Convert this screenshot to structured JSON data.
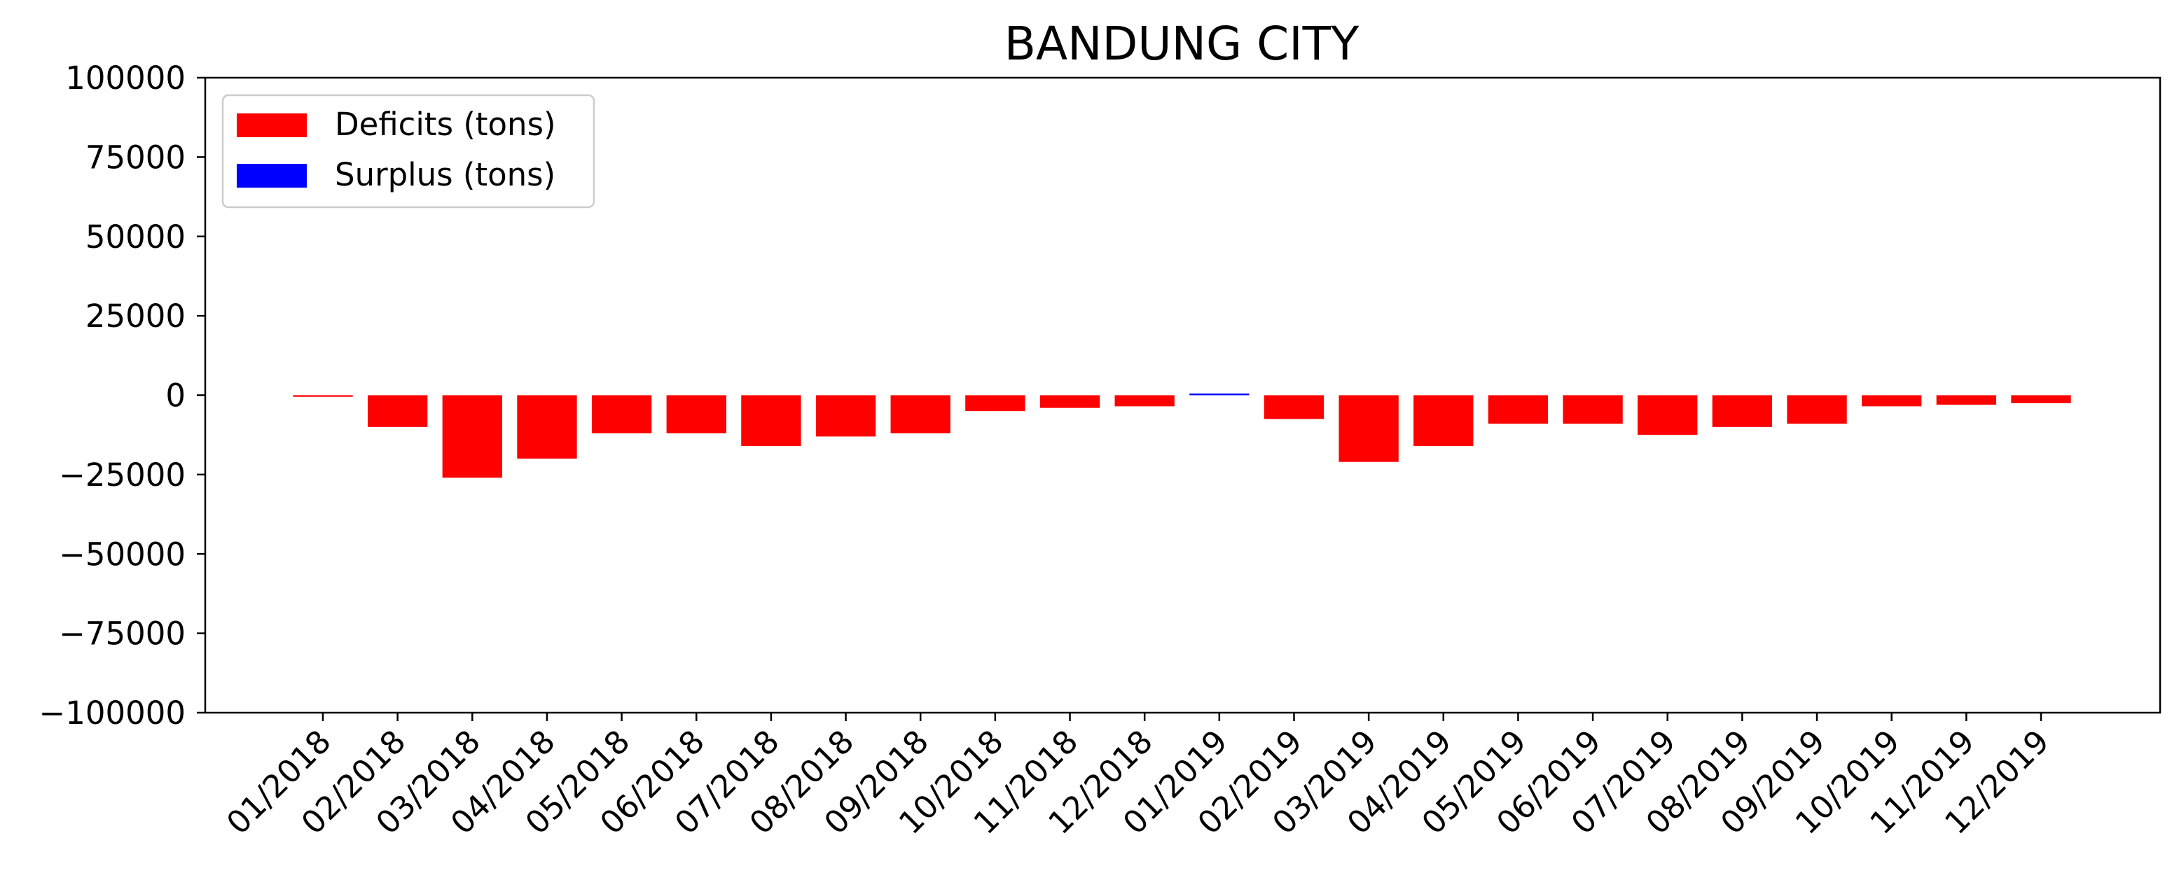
{
  "chart_data": {
    "type": "bar",
    "title": "BANDUNG CITY",
    "xlabel": "",
    "ylabel": "",
    "ylim": [
      -100000,
      100000
    ],
    "yticks": [
      100000,
      75000,
      50000,
      25000,
      0,
      -25000,
      -50000,
      -75000,
      -100000
    ],
    "ytick_labels": [
      "100000",
      "75000",
      "50000",
      "25000",
      "0",
      "−25000",
      "−50000",
      "−75000",
      "−100000"
    ],
    "grid": false,
    "legend_position": "upper-left",
    "categories": [
      "01/2018",
      "02/2018",
      "03/2018",
      "04/2018",
      "05/2018",
      "06/2018",
      "07/2018",
      "08/2018",
      "09/2018",
      "10/2018",
      "11/2018",
      "12/2018",
      "01/2019",
      "02/2019",
      "03/2019",
      "04/2019",
      "05/2019",
      "06/2019",
      "07/2019",
      "08/2019",
      "09/2019",
      "10/2019",
      "11/2019",
      "12/2019"
    ],
    "series": [
      {
        "name": "Deficits (tons)",
        "color": "#ff0000",
        "values": [
          -500,
          -10000,
          -26000,
          -20000,
          -12000,
          -12000,
          -16000,
          -13000,
          -12000,
          -5000,
          -4000,
          -3500,
          null,
          -7500,
          -21000,
          -16000,
          -9000,
          -9000,
          -12500,
          -10000,
          -9000,
          -3500,
          -3000,
          -2500
        ]
      },
      {
        "name": "Surplus (tons)",
        "color": "#0000ff",
        "values": [
          null,
          null,
          null,
          null,
          null,
          null,
          null,
          null,
          null,
          null,
          null,
          null,
          500,
          null,
          null,
          null,
          null,
          null,
          null,
          null,
          null,
          null,
          null,
          null
        ]
      }
    ]
  }
}
